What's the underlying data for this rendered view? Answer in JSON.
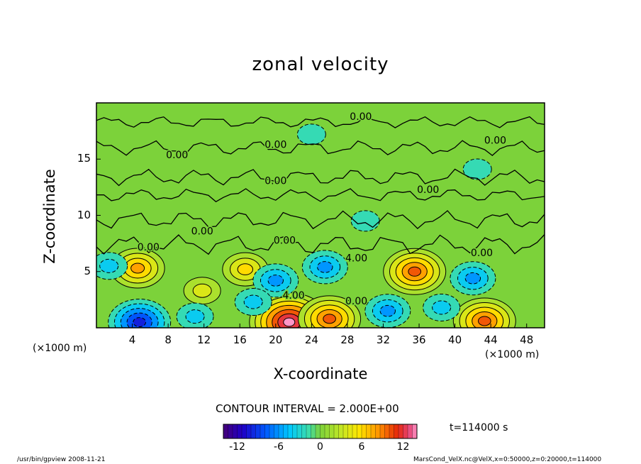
{
  "chart_data": {
    "type": "contour",
    "title": "zonal velocity",
    "xlabel": "X-coordinate",
    "ylabel": "Z-coordinate",
    "x_unit_left": "(×1000 m)",
    "x_unit_right": "(×1000 m)",
    "xlim": [
      0,
      50
    ],
    "ylim": [
      0,
      20
    ],
    "x_ticks": [
      "4",
      "8",
      "12",
      "16",
      "20",
      "24",
      "28",
      "32",
      "36",
      "40",
      "44",
      "48"
    ],
    "x_tick_values": [
      4,
      8,
      12,
      16,
      20,
      24,
      28,
      32,
      36,
      40,
      44,
      48
    ],
    "y_ticks": [
      "5",
      "10",
      "15"
    ],
    "y_tick_values": [
      5,
      10,
      15
    ],
    "contour_interval_text": "CONTOUR INTERVAL = 2.000E+00",
    "contour_interval": 2.0,
    "contour_labels": [
      {
        "text": "0.00",
        "x": 29.5,
        "z": 18.8
      },
      {
        "text": "0.00",
        "x": 20.0,
        "z": 16.3
      },
      {
        "text": "0.00",
        "x": 44.5,
        "z": 16.7
      },
      {
        "text": "0.00",
        "x": 9.0,
        "z": 15.4
      },
      {
        "text": "0.00",
        "x": 20.0,
        "z": 13.1
      },
      {
        "text": "0.00",
        "x": 37.0,
        "z": 12.3
      },
      {
        "text": "0.00",
        "x": 11.8,
        "z": 8.6
      },
      {
        "text": "0.00",
        "x": 5.8,
        "z": 7.2
      },
      {
        "text": "0.00",
        "x": 21.0,
        "z": 7.8
      },
      {
        "text": "0.00",
        "x": 43.0,
        "z": 6.7
      },
      {
        "text": "0.00",
        "x": 29.0,
        "z": 2.4
      },
      {
        "text": "4.00",
        "x": 29.0,
        "z": 6.2
      },
      {
        "text": "4.00",
        "x": 22.0,
        "z": 2.9
      }
    ],
    "features": [
      {
        "kind": "max",
        "x": 4.6,
        "z": 5.3,
        "value": 8
      },
      {
        "kind": "max",
        "x": 16.6,
        "z": 5.2,
        "value": 6
      },
      {
        "kind": "max",
        "x": 35.5,
        "z": 5.0,
        "value": 10
      },
      {
        "kind": "max",
        "x": 11.8,
        "z": 3.3,
        "value": 4
      },
      {
        "kind": "max",
        "x": 21.5,
        "z": 0.5,
        "value": 14
      },
      {
        "kind": "max",
        "x": 26.0,
        "z": 0.8,
        "value": 10
      },
      {
        "kind": "max",
        "x": 43.3,
        "z": 0.6,
        "value": 10
      },
      {
        "kind": "min",
        "x": 1.4,
        "z": 5.5,
        "value": -4
      },
      {
        "kind": "min",
        "x": 20.0,
        "z": 4.2,
        "value": -6
      },
      {
        "kind": "min",
        "x": 25.5,
        "z": 5.4,
        "value": -5
      },
      {
        "kind": "min",
        "x": 42.0,
        "z": 4.4,
        "value": -6
      },
      {
        "kind": "min",
        "x": 4.8,
        "z": 0.5,
        "value": -10
      },
      {
        "kind": "min",
        "x": 11.0,
        "z": 1.0,
        "value": -4
      },
      {
        "kind": "min",
        "x": 17.5,
        "z": 2.3,
        "value": -4
      },
      {
        "kind": "min",
        "x": 32.5,
        "z": 1.5,
        "value": -6
      },
      {
        "kind": "min",
        "x": 38.5,
        "z": 1.8,
        "value": -4
      },
      {
        "kind": "min",
        "x": 30.0,
        "z": 9.5,
        "value": -2
      },
      {
        "kind": "min",
        "x": 24.0,
        "z": 17.2,
        "value": -2
      },
      {
        "kind": "min",
        "x": 42.5,
        "z": 14.1,
        "value": -2
      }
    ],
    "colorbar": {
      "min": -14,
      "max": 14,
      "ticks": [
        "-12",
        "-6",
        "0",
        "6",
        "12"
      ],
      "tick_values": [
        -12,
        -6,
        0,
        6,
        12
      ]
    },
    "time_label": "t=114000 s"
  },
  "footer": {
    "left": "/usr/bin/gpview  2008-11-21",
    "right": "MarsCond_VelX.nc@VelX,x=0:50000,z=0:20000,t=114000"
  },
  "colors": {
    "background": "#ffffff",
    "frame": "#000000",
    "zero_level": "#7cd23a"
  }
}
